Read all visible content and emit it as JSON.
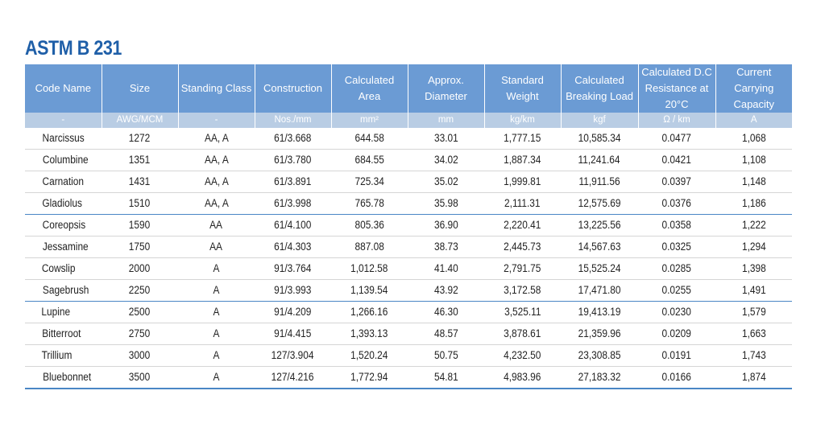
{
  "title": "ASTM B 231",
  "headers": [
    {
      "l1": "Code Name",
      "l2": ""
    },
    {
      "l1": "Size",
      "l2": ""
    },
    {
      "l1": "Standing Class",
      "l2": ""
    },
    {
      "l1": "Construction",
      "l2": ""
    },
    {
      "l1": "Calculated",
      "l2": "Area"
    },
    {
      "l1": "Approx.",
      "l2": "Diameter"
    },
    {
      "l1": "Standard",
      "l2": "Weight"
    },
    {
      "l1": "Calculated",
      "l2": "Breaking Load"
    },
    {
      "l1": "Calculated D.C",
      "l2": "Resistance at 20°C"
    },
    {
      "l1": "Current Carrying",
      "l2": "Capacity"
    }
  ],
  "units": [
    "-",
    "AWG/MCM",
    "-",
    "Nos./mm",
    "mm²",
    "mm",
    "kg/km",
    "kgf",
    "Ω / km",
    "A"
  ],
  "rows": [
    [
      "Narcissus",
      "1272",
      "AA, A",
      "61/3.668",
      "644.58",
      "33.01",
      "1,777.15",
      "10,585.34",
      "0.0477",
      "1,068"
    ],
    [
      "Columbine",
      "1351",
      "AA, A",
      "61/3.780",
      "684.55",
      "34.02",
      "1,887.34",
      "11,241.64",
      "0.0421",
      "1,108"
    ],
    [
      "Carnation",
      "1431",
      "AA, A",
      "61/3.891",
      "725.34",
      "35.02",
      "1,999.81",
      "11,911.56",
      "0.0397",
      "1,148"
    ],
    [
      "Gladiolus",
      "1510",
      "AA, A",
      "61/3.998",
      "765.78",
      "35.98",
      "2,111.31",
      "12,575.69",
      "0.0376",
      "1,186"
    ],
    [
      "Coreopsis",
      "1590",
      "AA",
      "61/4.100",
      "805.36",
      "36.90",
      "2,220.41",
      "13,225.56",
      "0.0358",
      "1,222"
    ],
    [
      "Jessamine",
      "1750",
      "AA",
      "61/4.303",
      "887.08",
      "38.73",
      "2,445.73",
      "14,567.63",
      "0.0325",
      "1,294"
    ],
    [
      "Cowslip",
      "2000",
      "A",
      "91/3.764",
      "1,012.58",
      "41.40",
      "2,791.75",
      "15,525.24",
      "0.0285",
      "1,398"
    ],
    [
      "Sagebrush",
      "2250",
      "A",
      "91/3.993",
      "1,139.54",
      "43.92",
      "3,172.58",
      "17,471.80",
      "0.0255",
      "1,491"
    ],
    [
      "Lupine",
      "2500",
      "A",
      "91/4.209",
      "1,266.16",
      "46.30",
      "3,525.11",
      "19,413.19",
      "0.0230",
      "1,579"
    ],
    [
      "Bitterroot",
      "2750",
      "A",
      "91/4.415",
      "1,393.13",
      "48.57",
      "3,878.61",
      "21,359.96",
      "0.0209",
      "1,663"
    ],
    [
      "Trillium",
      "3000",
      "A",
      "127/3.904",
      "1,520.24",
      "50.75",
      "4,232.50",
      "23,308.85",
      "0.0191",
      "1,743"
    ],
    [
      "Bluebonnet",
      "3500",
      "A",
      "127/4.216",
      "1,772.94",
      "54.81",
      "4,983.96",
      "27,183.32",
      "0.0166",
      "1,874"
    ]
  ],
  "colors": {
    "header": "#6b9bd4",
    "units_row": "#b9cde4",
    "title": "#1f5fa8",
    "rule": "#4a86c5"
  }
}
